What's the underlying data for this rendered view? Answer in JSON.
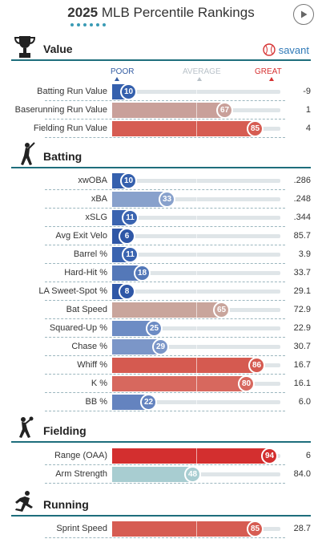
{
  "header": {
    "year": "2025",
    "title": "MLB Percentile Rankings"
  },
  "savant": {
    "label": "savant"
  },
  "scale": {
    "poor": "POOR",
    "average": "AVERAGE",
    "great": "GREAT"
  },
  "colors": {
    "r6": "#2f57a6",
    "r8": "#2f57a6",
    "r10": "#3560ad",
    "r11": "#3a64b0",
    "r18": "#5478b8",
    "r22": "#6483bf",
    "r25": "#6d8cc4",
    "r29": "#7b96c8",
    "r33": "#88a1cc",
    "r48": "#a8cdd1",
    "r65": "#c9a59c",
    "r67": "#c9a09a",
    "r80": "#d7685e",
    "r85": "#d65c52",
    "r86": "#d55a50",
    "r94": "#d32f2f"
  },
  "sections": [
    {
      "title": "Value",
      "icon": "trophy-icon",
      "rows": [
        {
          "label": "Batting Run Value",
          "pct": 10,
          "value": "-9"
        },
        {
          "label": "Baserunning Run Value",
          "pct": 67,
          "value": "1"
        },
        {
          "label": "Fielding Run Value",
          "pct": 85,
          "value": "4"
        }
      ]
    },
    {
      "title": "Batting",
      "icon": "batter-icon",
      "rows": [
        {
          "label": "xwOBA",
          "pct": 10,
          "value": ".286"
        },
        {
          "label": "xBA",
          "pct": 33,
          "value": ".248"
        },
        {
          "label": "xSLG",
          "pct": 11,
          "value": ".344"
        },
        {
          "label": "Avg Exit Velo",
          "pct": 6,
          "value": "85.7"
        },
        {
          "label": "Barrel %",
          "pct": 11,
          "value": "3.9"
        },
        {
          "label": "Hard-Hit %",
          "pct": 18,
          "value": "33.7"
        },
        {
          "label": "LA Sweet-Spot %",
          "pct": 8,
          "value": "29.1"
        },
        {
          "label": "Bat Speed",
          "pct": 65,
          "value": "72.9"
        },
        {
          "label": "Squared-Up %",
          "pct": 25,
          "value": "22.9"
        },
        {
          "label": "Chase %",
          "pct": 29,
          "value": "30.7"
        },
        {
          "label": "Whiff %",
          "pct": 86,
          "value": "16.7"
        },
        {
          "label": "K %",
          "pct": 80,
          "value": "16.1"
        },
        {
          "label": "BB %",
          "pct": 22,
          "value": "6.0"
        }
      ]
    },
    {
      "title": "Fielding",
      "icon": "fielder-icon",
      "rows": [
        {
          "label": "Range (OAA)",
          "pct": 94,
          "value": "6"
        },
        {
          "label": "Arm Strength",
          "pct": 48,
          "value": "84.0"
        }
      ]
    },
    {
      "title": "Running",
      "icon": "runner-icon",
      "rows": [
        {
          "label": "Sprint Speed",
          "pct": 85,
          "value": "28.7"
        }
      ]
    }
  ]
}
